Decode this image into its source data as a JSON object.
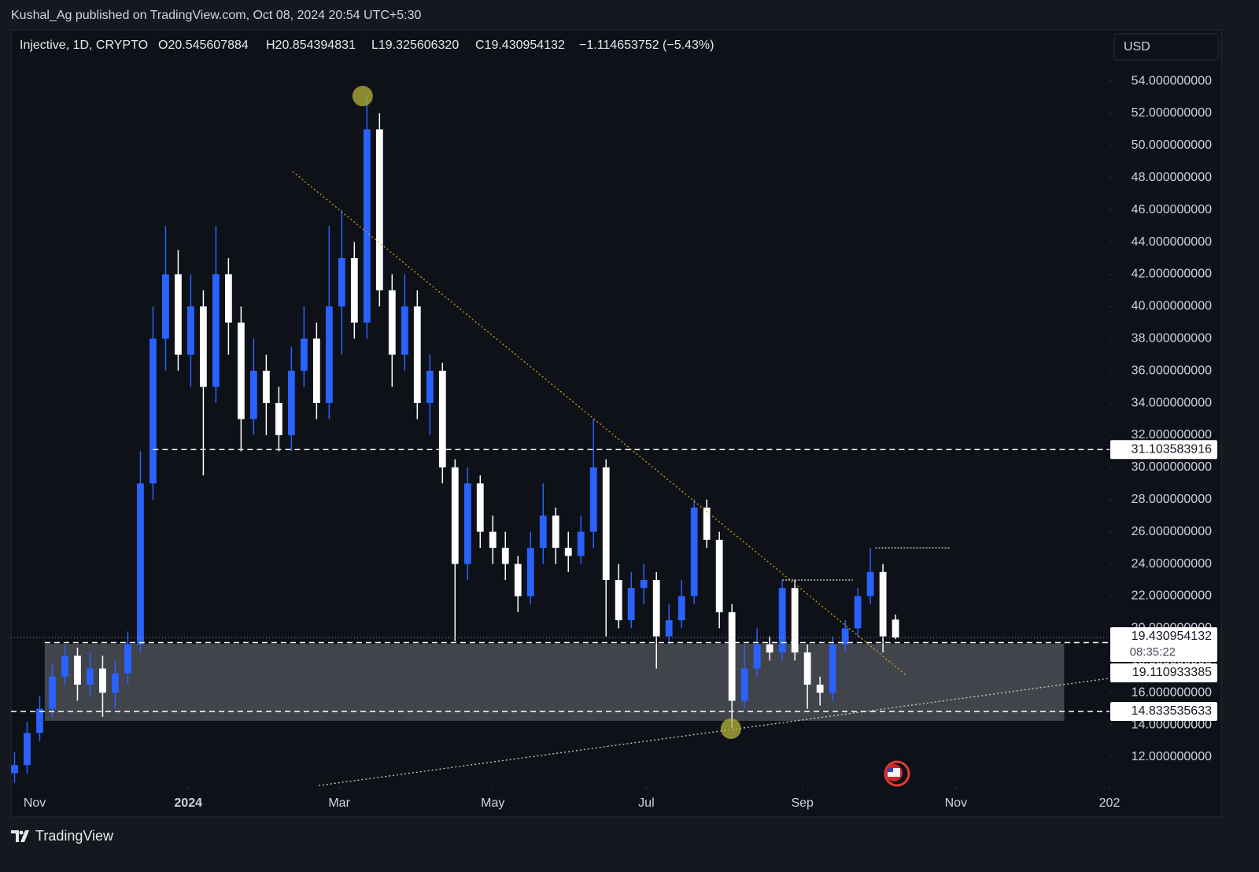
{
  "publish_bar": "Kushal_Ag published on TradingView.com, Oct 08, 2024 20:54 UTC+5:30",
  "chart_data": {
    "type": "candlestick",
    "legend": {
      "symbol": "Injective, 1D, CRYPTO",
      "open": "O20.545607884",
      "high": "H20.854394831",
      "low": "L19.325606320",
      "close": "C19.430954132",
      "change": "−1.114653752 (−5.43%)"
    },
    "currency": "USD",
    "x": [
      -8,
      -3,
      2,
      7,
      12,
      17,
      22,
      27,
      32,
      37,
      42,
      47,
      52,
      57,
      62,
      67,
      72,
      77,
      82,
      87,
      92,
      97,
      102,
      107,
      112,
      117,
      122,
      127,
      132,
      137,
      142,
      147,
      152,
      157,
      162,
      167,
      172,
      177,
      182,
      187,
      192,
      197,
      202,
      207,
      212,
      217,
      222,
      227,
      232,
      237,
      242,
      247,
      252,
      257,
      262,
      267,
      272,
      277,
      282,
      287,
      292,
      297,
      302,
      307,
      312,
      317,
      322,
      327,
      332,
      337,
      342
    ],
    "open": [
      11,
      11.5,
      13.5,
      15,
      17,
      18.3,
      16.5,
      17.5,
      16,
      17.2,
      19,
      29,
      38,
      42,
      37,
      40,
      35,
      42,
      39,
      33,
      36,
      34,
      32,
      36,
      38,
      34,
      40,
      43,
      39,
      51,
      41,
      37,
      40,
      34,
      36,
      30,
      24,
      29,
      26,
      25,
      24,
      22,
      25,
      27,
      25,
      24.5,
      26,
      30,
      23,
      20.5,
      22.5,
      23,
      19.5,
      20.5,
      22,
      27.5,
      25.5,
      21,
      15.5,
      17.5,
      19,
      18.5,
      22.5,
      18.5,
      16.5,
      16,
      19,
      20,
      22,
      23.5,
      20.545607884
    ],
    "high": [
      12.3,
      14.2,
      15.8,
      17.8,
      19,
      18.8,
      18.5,
      18.3,
      18,
      19.8,
      31,
      40,
      45,
      43.5,
      42,
      41,
      45,
      43,
      40,
      38,
      37,
      35,
      37.5,
      40,
      39,
      45,
      46,
      44,
      53,
      52,
      42,
      42,
      41,
      37,
      36.5,
      30.5,
      30,
      29.5,
      27,
      26,
      24.5,
      26,
      29,
      27.5,
      26,
      27,
      33,
      30.5,
      24,
      23.5,
      24,
      23.5,
      21.5,
      23,
      28,
      28,
      26,
      21.5,
      19,
      20,
      19.5,
      23,
      23,
      19,
      17,
      19.5,
      20.5,
      22.5,
      25,
      24,
      20.854394831
    ],
    "low": [
      10.4,
      11,
      13,
      14.5,
      16.5,
      15.5,
      15.8,
      14.5,
      15,
      16.5,
      18.5,
      28,
      36,
      36,
      35,
      29.5,
      34,
      37,
      31,
      32,
      32,
      31,
      31,
      35,
      33,
      33,
      37,
      38,
      38,
      40,
      35,
      36,
      33,
      32,
      29,
      19.2,
      23,
      25,
      24,
      23,
      21,
      21.5,
      24,
      24,
      23.5,
      24,
      25,
      19.5,
      20,
      20,
      21.5,
      17.5,
      19,
      20,
      21.5,
      25,
      20,
      13.8,
      15,
      17,
      18,
      18,
      18,
      15,
      15.2,
      15.5,
      18.5,
      19.5,
      21.5,
      18.5,
      19.32560632
    ],
    "close": [
      11.5,
      13.5,
      15,
      17,
      18.3,
      16.5,
      17.5,
      16,
      17.2,
      19,
      29,
      38,
      42,
      37,
      40,
      35,
      42,
      39,
      33,
      36,
      34,
      32,
      36,
      38,
      34,
      40,
      43,
      39,
      51,
      41,
      37,
      40,
      34,
      36,
      30,
      24,
      29,
      26,
      25,
      24,
      22,
      25,
      27,
      25,
      24.5,
      26,
      30,
      23,
      20.5,
      22.5,
      23,
      19.5,
      20.5,
      22,
      27.5,
      25.5,
      21,
      15.5,
      17.5,
      19,
      18.5,
      22.5,
      18.5,
      16.5,
      16,
      19,
      20,
      22,
      23.5,
      19.5,
      19.430954132
    ],
    "up_color": "#2962ff",
    "down_color": "#ffffff",
    "xlim": [
      -9.4,
      427
    ],
    "xticks": [
      {
        "value": 0,
        "label": "Nov"
      },
      {
        "value": 61,
        "label": "2024"
      },
      {
        "value": 121,
        "label": "Mar"
      },
      {
        "value": 182,
        "label": "May"
      },
      {
        "value": 243,
        "label": "Jul"
      },
      {
        "value": 305,
        "label": "Sep"
      },
      {
        "value": 366,
        "label": "Nov"
      },
      {
        "value": 427,
        "label": "202"
      }
    ],
    "ylim": [
      10.14,
      57.18
    ],
    "yticks": [
      {
        "value": 12,
        "label": "12.000000000"
      },
      {
        "value": 14,
        "label": "14.000000000"
      },
      {
        "value": 16,
        "label": "16.000000000"
      },
      {
        "value": 18,
        "label": "18.000000000"
      },
      {
        "value": 20,
        "label": "20.000000000"
      },
      {
        "value": 22,
        "label": "22.000000000"
      },
      {
        "value": 24,
        "label": "24.000000000"
      },
      {
        "value": 26,
        "label": "26.000000000"
      },
      {
        "value": 28,
        "label": "28.000000000"
      },
      {
        "value": 30,
        "label": "30.000000000"
      },
      {
        "value": 32,
        "label": "32.000000000"
      },
      {
        "value": 34,
        "label": "34.000000000"
      },
      {
        "value": 36,
        "label": "36.000000000"
      },
      {
        "value": 38,
        "label": "38.000000000"
      },
      {
        "value": 40,
        "label": "40.000000000"
      },
      {
        "value": 42,
        "label": "42.000000000"
      },
      {
        "value": 44,
        "label": "44.000000000"
      },
      {
        "value": 46,
        "label": "46.000000000"
      },
      {
        "value": 48,
        "label": "48.000000000"
      },
      {
        "value": 50,
        "label": "50.000000000"
      },
      {
        "value": 52,
        "label": "52.000000000"
      },
      {
        "value": 54,
        "label": "54.000000000"
      }
    ],
    "levels": [
      {
        "value": 31.103583916,
        "from": 47
      },
      {
        "value": 19.110933385,
        "from": 4
      },
      {
        "value": 14.833535633,
        "from": -9.4
      }
    ],
    "last_price": {
      "value": 19.430954132,
      "countdown": "08:35:22"
    },
    "zone": {
      "x": [
        4,
        409
      ],
      "y": [
        14.25,
        19.04
      ]
    },
    "trendlines": [
      {
        "x": [
          102.5,
          346.25
        ],
        "y": [
          48.38,
          17.08
        ],
        "color": "#d4a017"
      },
      {
        "x": [
          112.8,
          426.9
        ],
        "y": [
          10.23,
          16.89
        ],
        "color": "#cccccc"
      }
    ],
    "range_lines": [
      {
        "x": [
          297,
          325
        ],
        "y": 23
      },
      {
        "x": [
          334,
          364
        ],
        "y": 25
      }
    ],
    "markers": [
      {
        "x": 130.3,
        "y": 53.07
      },
      {
        "x": 276.6,
        "y": 13.76
      }
    ]
  },
  "footer": "TradingView"
}
